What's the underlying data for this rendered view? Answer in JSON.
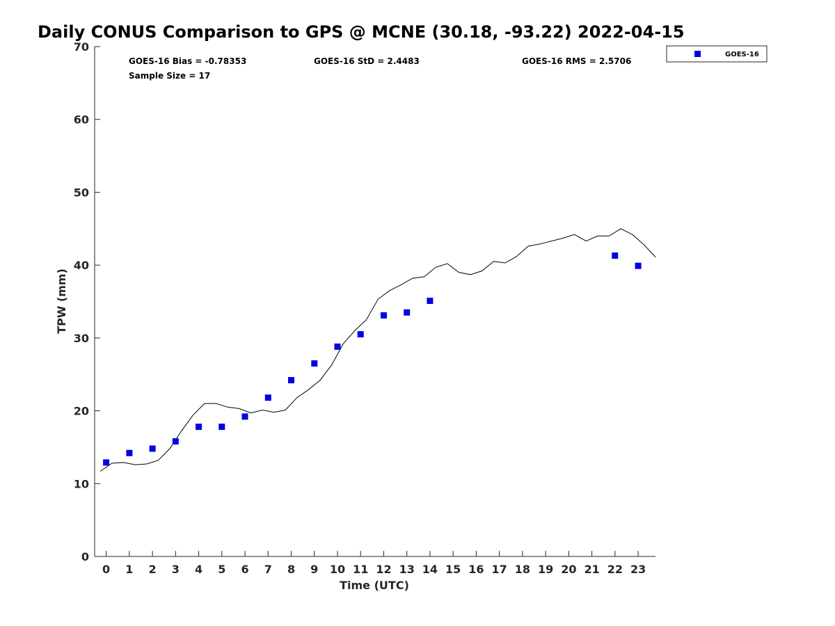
{
  "chart_data": {
    "type": "scatter",
    "title": "Daily CONUS Comparison to GPS @ MCNE (30.18, -93.22) 2022-04-15",
    "xlabel": "Time (UTC)",
    "ylabel": "TPW (mm)",
    "xlim": [
      -0.5,
      23.75
    ],
    "ylim": [
      0,
      70
    ],
    "x_ticks": [
      "0",
      "1",
      "2",
      "3",
      "4",
      "5",
      "6",
      "7",
      "8",
      "9",
      "10",
      "11",
      "12",
      "13",
      "14",
      "15",
      "16",
      "17",
      "18",
      "19",
      "20",
      "21",
      "22",
      "23"
    ],
    "y_ticks": [
      "0",
      "10",
      "20",
      "30",
      "40",
      "50",
      "60",
      "70"
    ],
    "grid": false,
    "legend": {
      "position": "top-right",
      "entries": [
        "GOES-16"
      ]
    },
    "stats": {
      "bias": "GOES-16 Bias = -0.78353",
      "std": "GOES-16 StD = 2.4483",
      "rms": "GOES-16 RMS = 2.5706",
      "sample": "Sample Size = 17"
    },
    "series": [
      {
        "name": "GOES-16",
        "type": "scatter",
        "marker": "square",
        "color": "#0000e6",
        "x": [
          0,
          1,
          2,
          3,
          4,
          5,
          6,
          7,
          8,
          9,
          10,
          11,
          12,
          13,
          14,
          22,
          23
        ],
        "y": [
          12.9,
          14.2,
          14.8,
          15.8,
          17.8,
          17.8,
          19.2,
          21.8,
          24.2,
          26.5,
          28.8,
          30.5,
          33.1,
          33.5,
          35.1,
          41.3,
          39.9
        ]
      },
      {
        "type": "line",
        "color": "#000000",
        "x": [
          -0.25,
          0.25,
          0.75,
          1.25,
          1.75,
          2.25,
          2.75,
          3.25,
          3.75,
          4.25,
          4.75,
          5.25,
          5.75,
          6.25,
          6.75,
          7.25,
          7.75,
          8.25,
          8.75,
          9.25,
          9.75,
          10.25,
          10.75,
          11.25,
          11.75,
          12.25,
          12.75,
          13.25,
          13.75,
          14.25,
          14.75,
          15.25,
          15.75,
          16.25,
          16.75,
          17.25,
          17.75,
          18.25,
          18.75,
          19.25,
          19.75,
          20.25,
          20.75,
          21.25,
          21.75,
          22.25,
          22.75,
          23.25,
          23.75
        ],
        "y": [
          11.7,
          12.8,
          12.9,
          12.6,
          12.7,
          13.2,
          14.8,
          17.2,
          19.4,
          21.0,
          21.0,
          20.5,
          20.3,
          19.7,
          20.1,
          19.8,
          20.1,
          21.8,
          22.9,
          24.2,
          26.3,
          29.2,
          31.0,
          32.5,
          35.3,
          36.5,
          37.3,
          38.2,
          38.4,
          39.7,
          40.2,
          39.0,
          38.7,
          39.2,
          40.5,
          40.3,
          41.2,
          42.6,
          42.9,
          43.3,
          43.7,
          44.2,
          43.3,
          44.0,
          44.0,
          45.0,
          44.2,
          42.8,
          41.1
        ]
      }
    ]
  },
  "colors": {
    "marker": "#0000e6",
    "line": "#000000",
    "axis": "#262626"
  }
}
